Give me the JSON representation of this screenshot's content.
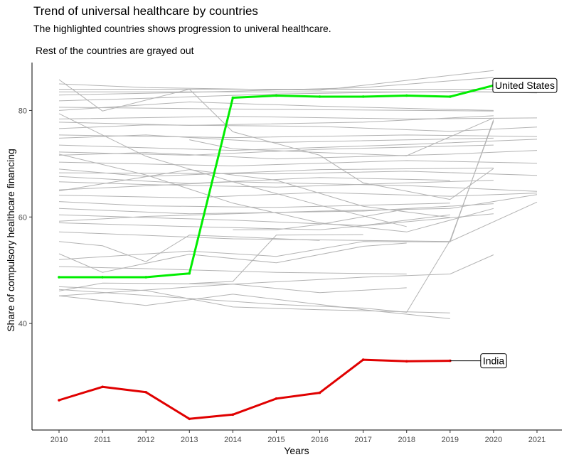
{
  "chart_data": {
    "type": "line",
    "title": "Trend of universal healthcare by countries",
    "subtitle": "The highlighted countries shows progression to univeral healthcare.",
    "subtitle2": "Rest of the countries are grayed out",
    "xlabel": "Years",
    "ylabel": "Share of compulsory healthcare financing",
    "xlim": [
      2010,
      2021
    ],
    "ylim": [
      20,
      89
    ],
    "x_ticks": [
      "2010",
      "2011",
      "2012",
      "2013",
      "2014",
      "2015",
      "2016",
      "2017",
      "2018",
      "2019",
      "2020",
      "2021"
    ],
    "y_ticks": [
      "40",
      "60",
      "80"
    ],
    "grid": false,
    "highlighted": [
      {
        "name": "United States",
        "color": "#00ee00",
        "x": [
          2010,
          2011,
          2012,
          2013,
          2014,
          2015,
          2016,
          2017,
          2018,
          2019,
          2020
        ],
        "values": [
          48.7,
          48.7,
          48.7,
          49.4,
          82.4,
          82.8,
          82.6,
          82.6,
          82.8,
          82.6,
          84.7
        ]
      },
      {
        "name": "India",
        "color": "#e00000",
        "x": [
          2010,
          2011,
          2012,
          2013,
          2014,
          2015,
          2016,
          2017,
          2018,
          2019
        ],
        "values": [
          25.6,
          28.1,
          27.1,
          22.1,
          22.9,
          25.9,
          27.0,
          33.2,
          32.9,
          33.0
        ]
      }
    ],
    "background_color": "#b3b3b3",
    "background": [
      {
        "x": [
          2010,
          2021
        ],
        "values": [
          84.0,
          84.0
        ]
      },
      {
        "x": [
          2010,
          2021
        ],
        "values": [
          83.5,
          83.5
        ]
      },
      {
        "x": [
          2010,
          2012,
          2016,
          2020
        ],
        "values": [
          85.0,
          84.3,
          83.8,
          87.5
        ]
      },
      {
        "x": [
          2010,
          2013,
          2017,
          2020
        ],
        "values": [
          82.9,
          83.4,
          84.3,
          86.2
        ]
      },
      {
        "x": [
          2010,
          2012,
          2015,
          2019,
          2021
        ],
        "values": [
          81.8,
          82.3,
          83.1,
          83.6,
          83.3
        ]
      },
      {
        "x": [
          2010,
          2015,
          2020
        ],
        "values": [
          80.6,
          80.2,
          79.9
        ]
      },
      {
        "x": [
          2010,
          2013,
          2016,
          2020
        ],
        "values": [
          80.0,
          81.6,
          80.8,
          80.0
        ]
      },
      {
        "x": [
          2010,
          2014,
          2018,
          2021
        ],
        "values": [
          78.4,
          78.9,
          78.4,
          78.6
        ]
      },
      {
        "x": [
          2010,
          2013,
          2017,
          2020
        ],
        "values": [
          77.8,
          77.2,
          77.8,
          79.0
        ]
      },
      {
        "x": [
          2010,
          2012,
          2016,
          2019,
          2021
        ],
        "values": [
          76.6,
          77.3,
          77.0,
          76.1,
          76.9
        ]
      },
      {
        "x": [
          2010,
          2014,
          2018,
          2021
        ],
        "values": [
          75.4,
          74.9,
          75.4,
          75.1
        ]
      },
      {
        "x": [
          2010,
          2012,
          2015,
          2020
        ],
        "values": [
          74.8,
          75.4,
          74.0,
          74.8
        ]
      },
      {
        "x": [
          2010,
          2014,
          2018,
          2021
        ],
        "values": [
          73.5,
          72.5,
          73.6,
          74.6
        ]
      },
      {
        "x": [
          2010,
          2013,
          2016,
          2020
        ],
        "values": [
          72.2,
          71.6,
          72.7,
          73.5
        ]
      },
      {
        "x": [
          2010,
          2012,
          2015,
          2019,
          2021
        ],
        "values": [
          71.6,
          72.1,
          70.9,
          71.8,
          72.5
        ]
      },
      {
        "x": [
          2010,
          2014,
          2018,
          2021
        ],
        "values": [
          70.3,
          69.6,
          70.6,
          70.1
        ]
      },
      {
        "x": [
          2010,
          2012,
          2016,
          2020
        ],
        "values": [
          69.0,
          67.6,
          68.9,
          69.2
        ]
      },
      {
        "x": [
          2010,
          2013,
          2016,
          2019
        ],
        "values": [
          67.6,
          66.3,
          67.4,
          66.9
        ]
      },
      {
        "x": [
          2010,
          2012,
          2015,
          2018,
          2020
        ],
        "values": [
          66.6,
          66.1,
          65.6,
          66.4,
          66.9
        ]
      },
      {
        "x": [
          2010,
          2014,
          2018,
          2021
        ],
        "values": [
          65.1,
          66.6,
          65.9,
          64.8
        ]
      },
      {
        "x": [
          2010,
          2013,
          2016,
          2019,
          2021
        ],
        "values": [
          64.1,
          63.6,
          64.6,
          63.9,
          64.5
        ]
      },
      {
        "x": [
          2010,
          2012,
          2015,
          2019
        ],
        "values": [
          62.9,
          62.1,
          61.8,
          62.6
        ]
      },
      {
        "x": [
          2010,
          2013,
          2017,
          2020
        ],
        "values": [
          61.6,
          60.6,
          61.1,
          62.5
        ]
      },
      {
        "x": [
          2010,
          2014,
          2017,
          2019
        ],
        "values": [
          60.4,
          59.4,
          58.4,
          60.4
        ]
      },
      {
        "x": [
          2010,
          2012,
          2016,
          2019,
          2021
        ],
        "values": [
          59.2,
          60.1,
          61.1,
          61.6,
          64.2
        ]
      },
      {
        "x": [
          2010,
          2013,
          2016,
          2020
        ],
        "values": [
          58.9,
          58.2,
          57.6,
          60.6
        ]
      },
      {
        "x": [
          2010,
          2011,
          2013,
          2014,
          2016,
          2017,
          2019,
          2020
        ],
        "values": [
          85.8,
          79.9,
          84.0,
          76.0,
          71.6,
          66.4,
          63.3,
          69.1
        ]
      },
      {
        "x": [
          2010,
          2012,
          2014,
          2016,
          2018
        ],
        "values": [
          79.4,
          71.4,
          66.6,
          62.2,
          58.2
        ]
      },
      {
        "x": [
          2010,
          2012,
          2014,
          2016,
          2018,
          2020
        ],
        "values": [
          71.8,
          67.9,
          62.6,
          58.9,
          57.2,
          61.6
        ]
      },
      {
        "x": [
          2010,
          2013,
          2015,
          2017,
          2019
        ],
        "values": [
          64.9,
          68.9,
          66.9,
          62.0,
          59.9
        ]
      },
      {
        "x": [
          2010,
          2011,
          2012,
          2013,
          2014,
          2016
        ],
        "values": [
          55.4,
          54.6,
          51.6,
          56.6,
          56.3,
          55.6
        ]
      },
      {
        "x": [
          2010,
          2013,
          2015,
          2017,
          2019,
          2020
        ],
        "values": [
          52.0,
          53.6,
          52.6,
          55.4,
          55.3,
          78.3
        ]
      },
      {
        "x": [
          2010,
          2012,
          2015,
          2018
        ],
        "values": [
          50.7,
          50.3,
          49.6,
          49.3
        ]
      },
      {
        "x": [
          2010,
          2011,
          2013,
          2015,
          2017,
          2018
        ],
        "values": [
          53.1,
          49.6,
          53.0,
          51.4,
          54.5,
          55.1
        ]
      },
      {
        "x": [
          2010,
          2014,
          2017,
          2019,
          2020
        ],
        "values": [
          45.2,
          47.4,
          48.7,
          49.3,
          52.9
        ]
      },
      {
        "x": [
          2010,
          2011,
          2014,
          2016,
          2018
        ],
        "values": [
          46.1,
          47.6,
          47.4,
          45.8,
          46.7
        ]
      },
      {
        "x": [
          2010,
          2012,
          2014,
          2017,
          2019
        ],
        "values": [
          45.2,
          43.4,
          45.5,
          42.6,
          40.9
        ]
      },
      {
        "x": [
          2010,
          2013,
          2015,
          2017,
          2018,
          2019,
          2020
        ],
        "values": [
          46.4,
          44.7,
          43.6,
          42.9,
          42.1,
          55.6,
          78.0
        ]
      },
      {
        "x": [
          2010,
          2012,
          2014,
          2016,
          2019
        ],
        "values": [
          46.9,
          46.2,
          43.1,
          42.6,
          42.0
        ]
      },
      {
        "x": [
          2013,
          2014,
          2015,
          2017
        ],
        "values": [
          47.5,
          47.9,
          56.6,
          56.7
        ]
      },
      {
        "x": [
          2014,
          2015,
          2016,
          2018
        ],
        "values": [
          57.6,
          57.6,
          58.6,
          61.5
        ]
      },
      {
        "x": [
          2013,
          2014,
          2016,
          2018,
          2020
        ],
        "values": [
          74.5,
          72.8,
          72.1,
          71.5,
          78.6
        ]
      },
      {
        "x": [
          2010,
          2015,
          2018,
          2021
        ],
        "values": [
          68.3,
          68.1,
          68.6,
          67.8
        ]
      },
      {
        "x": [
          2010,
          2014,
          2019,
          2021
        ],
        "values": [
          57.2,
          55.9,
          55.4,
          62.8
        ]
      }
    ]
  }
}
